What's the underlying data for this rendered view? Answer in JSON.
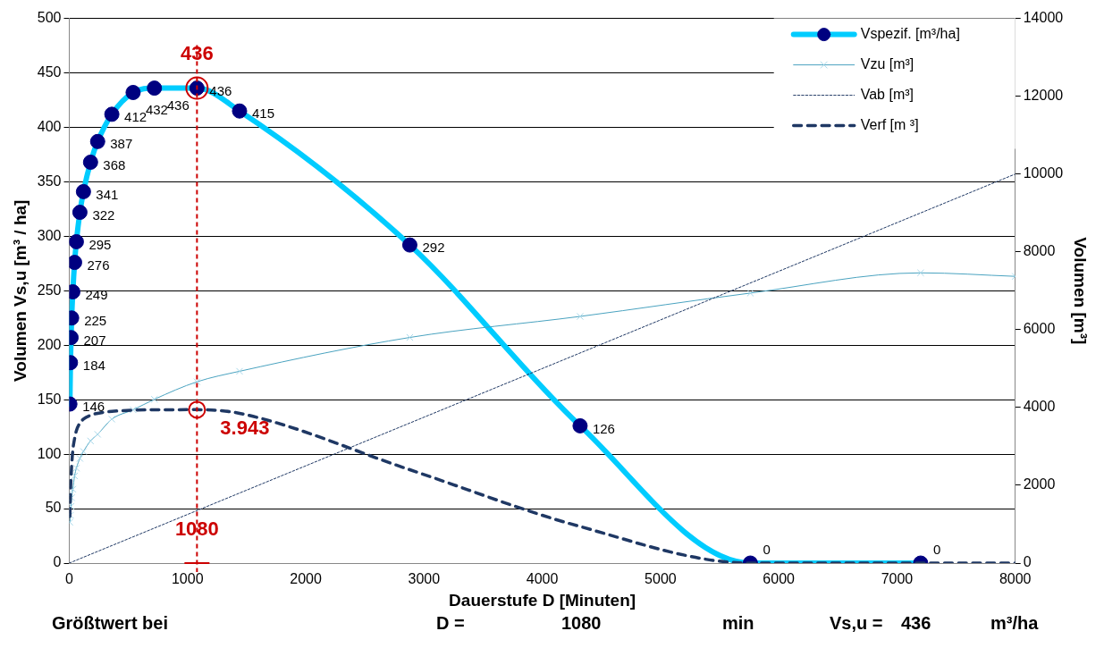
{
  "chart_data": {
    "type": "line",
    "xlabel": "Dauerstufe D [Minuten]",
    "ylabel": "Volumen Vs,u [m³ / ha]",
    "y2label": "Volumen [m³]",
    "xlim": [
      0,
      8000
    ],
    "xticks": [
      0,
      1000,
      2000,
      3000,
      4000,
      5000,
      6000,
      7000,
      8000
    ],
    "ylim": [
      0,
      500
    ],
    "yticks": [
      0,
      50,
      100,
      150,
      200,
      250,
      300,
      350,
      400,
      450,
      500
    ],
    "y2lim": [
      0,
      14000
    ],
    "y2ticks": [
      0,
      2000,
      4000,
      6000,
      8000,
      10000,
      12000,
      14000
    ],
    "grid": "y",
    "legend": "top right",
    "series": [
      {
        "name": "Vspezif. [m³/ha]",
        "color": "#00ccff",
        "colors": [
          "#000080",
          "#000080",
          "#000080",
          "#000080",
          "#000080",
          "#000080",
          "#000080",
          "#000080",
          "#000080",
          "#000080",
          "#000080",
          "#000080",
          "#000080",
          "#000080",
          "#000080",
          "#000080",
          "#000080",
          "#000080",
          "#000080",
          "#000080"
        ],
        "marker": "circle",
        "line_style": "solid",
        "x": [
          5,
          10,
          15,
          20,
          30,
          45,
          60,
          90,
          120,
          180,
          240,
          360,
          540,
          720,
          1080,
          1440,
          2880,
          4320,
          5760,
          7200
        ],
        "values": [
          146,
          184,
          207,
          225,
          249,
          276,
          295,
          322,
          341,
          368,
          387,
          412,
          432,
          436,
          436,
          415,
          292,
          126,
          0,
          0
        ],
        "value_labels": [
          "146",
          "184",
          "207",
          "225",
          "249",
          "276",
          "295",
          "322",
          "341",
          "368",
          "387",
          "412",
          "432",
          "436",
          "436",
          "415",
          "292",
          "126",
          "0",
          "0"
        ]
      },
      {
        "name": "Vzu [m³]",
        "color": "#4aa3c0",
        "colors": [
          "#a8d8ea",
          "#a8d8ea",
          "#a8d8ea",
          "#a8d8ea",
          "#a8d8ea",
          "#a8d8ea",
          "#a8d8ea",
          "#a8d8ea",
          "#a8d8ea",
          "#a8d8ea",
          "#a8d8ea",
          "#a8d8ea",
          "#a8d8ea",
          "#a8d8ea",
          "#a8d8ea",
          "#a8d8ea",
          "#a8d8ea",
          "#a8d8ea",
          "#a8d8ea",
          "#a8d8ea",
          "#a8d8ea"
        ],
        "marker": "cross",
        "line_style": "solid",
        "axis": "y2",
        "x": [
          5,
          10,
          15,
          20,
          30,
          45,
          60,
          90,
          120,
          180,
          240,
          360,
          540,
          720,
          1080,
          1440,
          2880,
          4320,
          5760,
          7200,
          8000
        ],
        "values": [
          1050,
          1230,
          1460,
          1680,
          1900,
          2240,
          2440,
          2690,
          2870,
          3140,
          3310,
          3700,
          3940,
          4210,
          4660,
          4930,
          5800,
          6340,
          6940,
          7460,
          7370
        ]
      },
      {
        "name": "Vab [m³]",
        "color": "#1f3864",
        "marker": "none",
        "line_style": "dashed",
        "axis": "y2",
        "x": [
          0,
          8000
        ],
        "values": [
          0,
          10000
        ]
      },
      {
        "name": "Verf [m ³]",
        "color": "#1f3864",
        "marker": "none",
        "line_style": "dashed",
        "axis": "y2",
        "x": [
          5,
          10,
          15,
          20,
          30,
          45,
          60,
          90,
          120,
          180,
          240,
          360,
          540,
          720,
          1080,
          1440,
          2880,
          4320,
          5760,
          7200,
          8000
        ],
        "values": [
          1200,
          1800,
          2200,
          2500,
          2900,
          3200,
          3400,
          3600,
          3700,
          3800,
          3850,
          3900,
          3930,
          3940,
          3943,
          3850,
          2400,
          940,
          0,
          0,
          0
        ]
      }
    ],
    "ref_lines": [
      {
        "axis": "x",
        "value": 1080,
        "label": "1080",
        "color": "#cc0000",
        "line_style": "dashed"
      }
    ],
    "annotations": [
      {
        "text": "436",
        "x": 1080,
        "y": 436
      },
      {
        "text": "3.943",
        "x": 1080,
        "y": 140.8
      },
      "Größtwert bei",
      "D =",
      "1080",
      "min",
      "Vs,u =",
      "436",
      "m³/ha"
    ]
  }
}
